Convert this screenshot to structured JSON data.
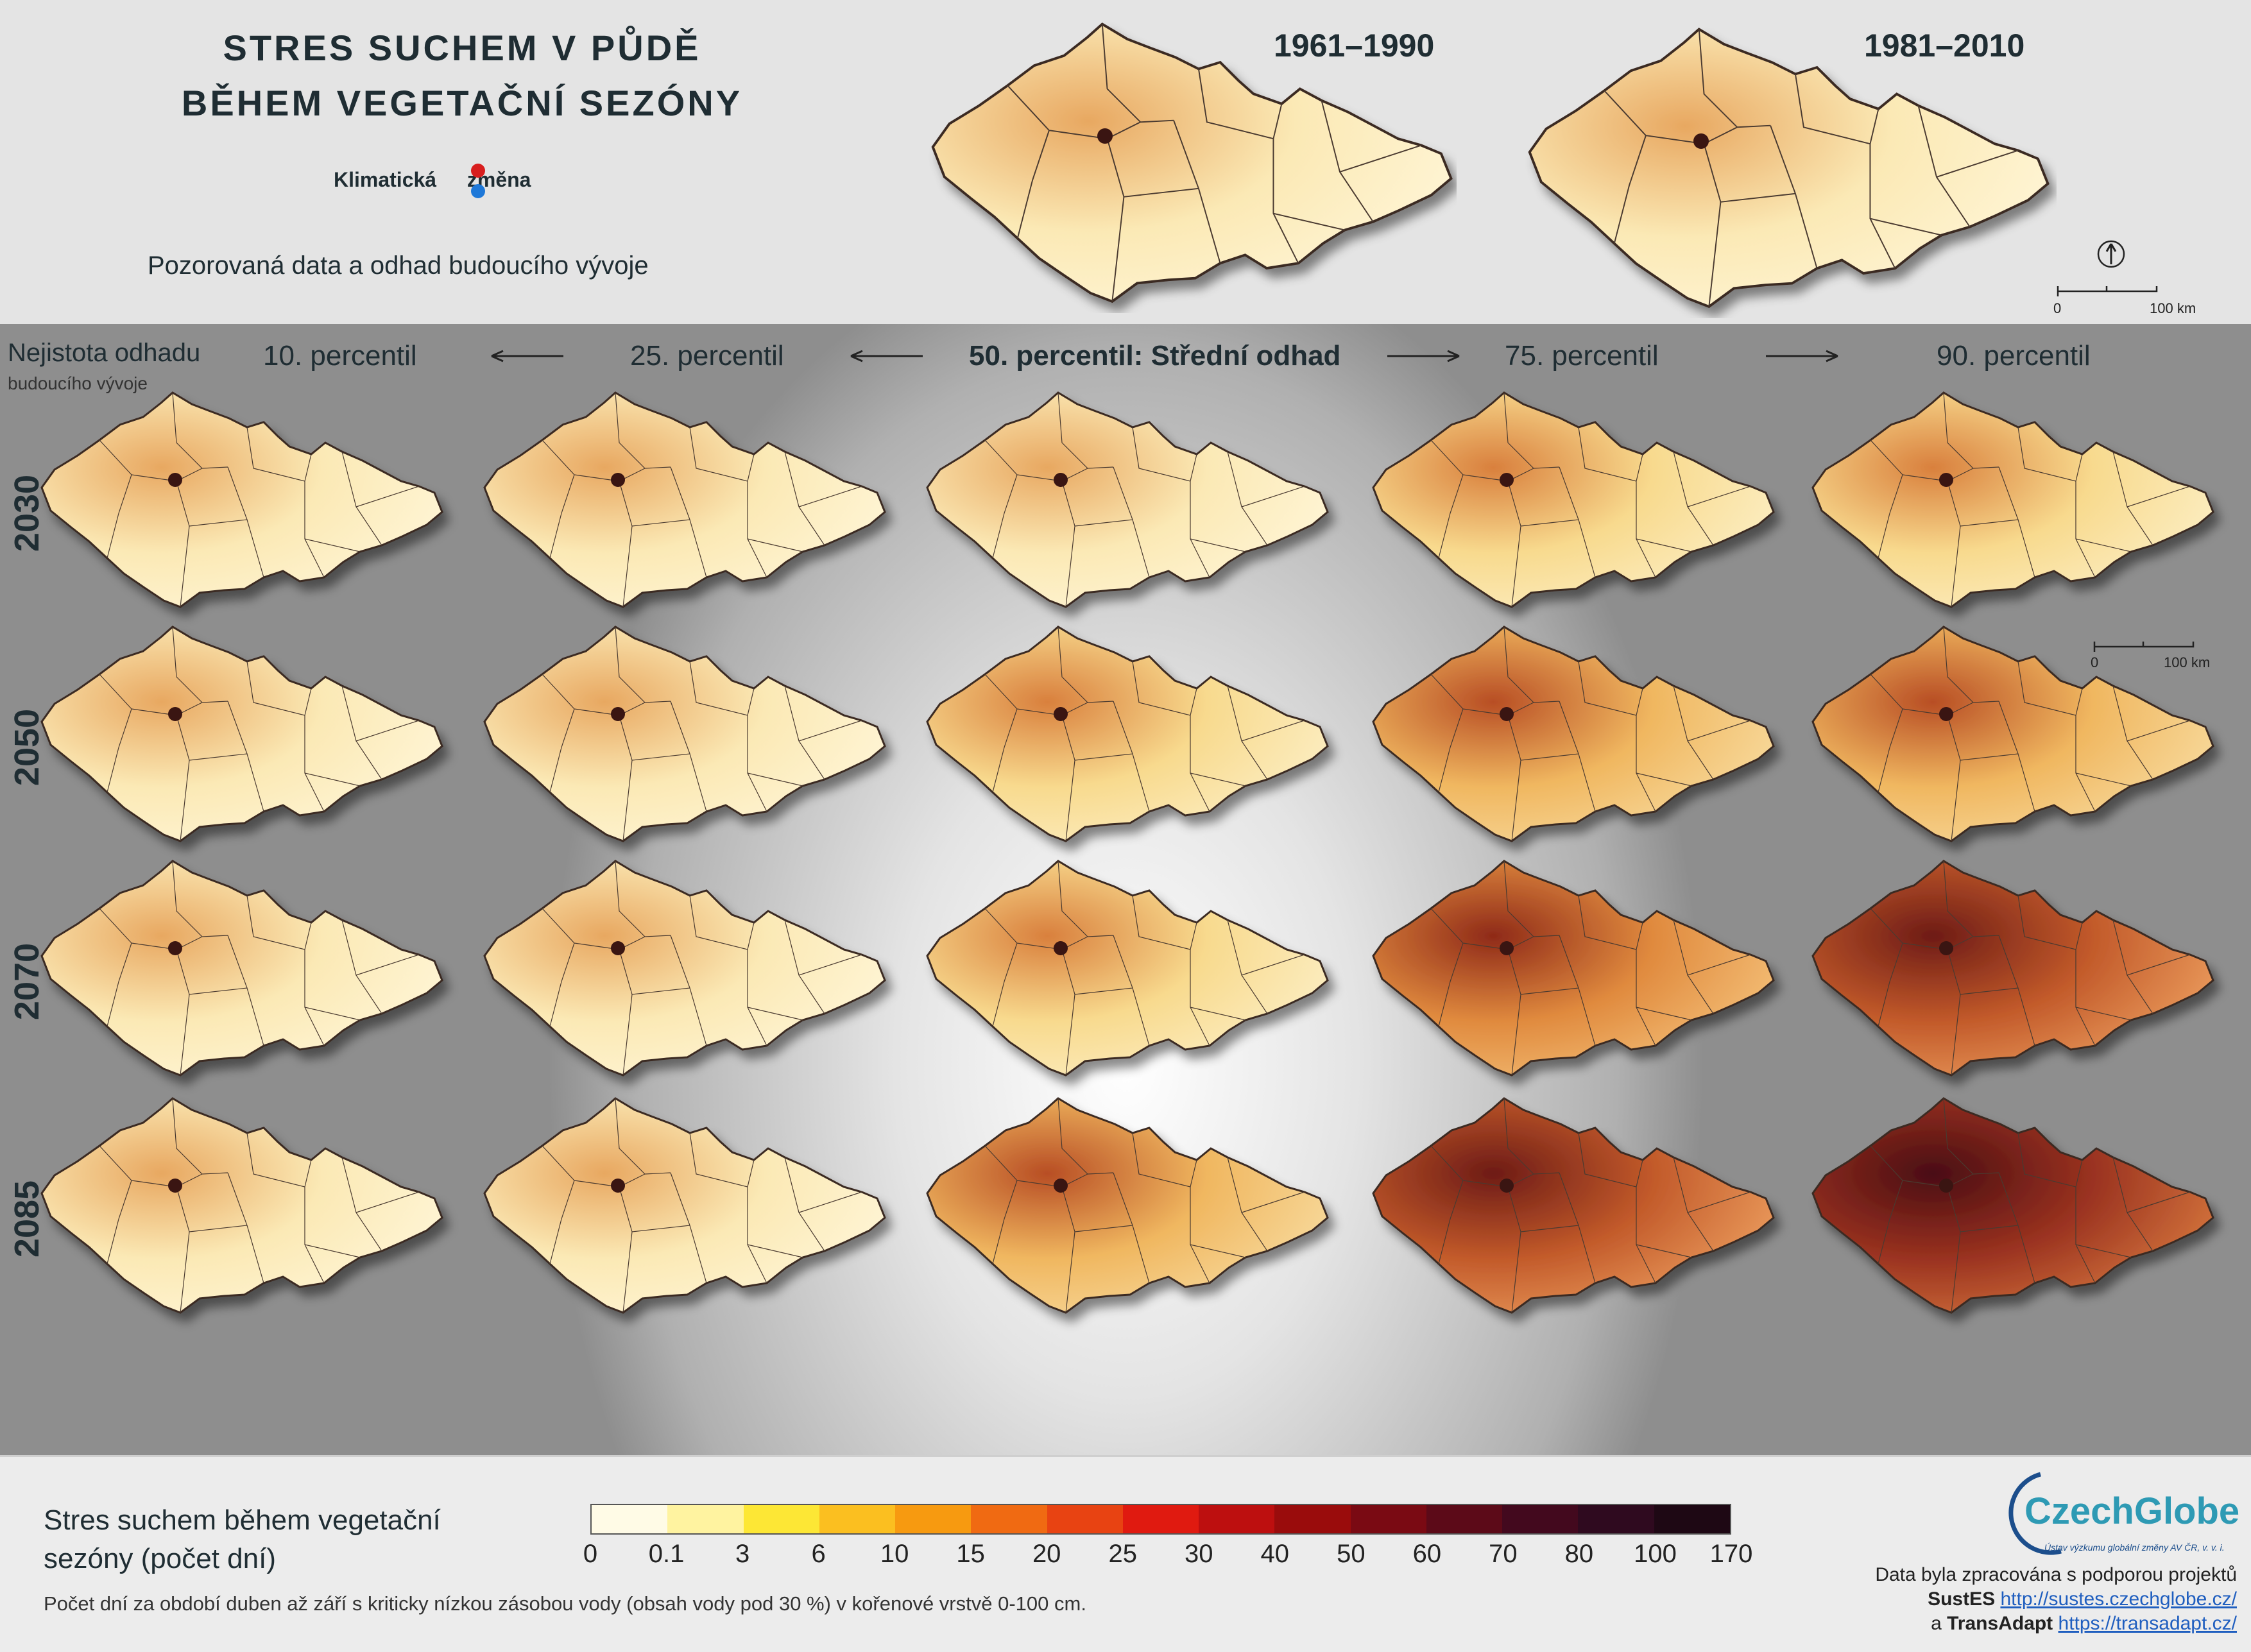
{
  "header": {
    "title_line1": "STRES SUCHEM V PŮDĚ",
    "title_line2": "BĚHEM VEGETAČNÍ SEZÓNY",
    "logo_word1": "Klimatická",
    "logo_word2": "změna",
    "subtitle": "Pozorovaná data a odhad budoucího vývoje"
  },
  "observed_periods": [
    {
      "label": "1961–1990",
      "intensity": 1
    },
    {
      "label": "1981–2010",
      "intensity": 1
    }
  ],
  "uncertainty": {
    "label": "Nejistota odhadu",
    "sublabel": "budoucího vývoje"
  },
  "percentiles": [
    {
      "label": "10. percentil",
      "bold": false
    },
    {
      "label": "25. percentil",
      "bold": false
    },
    {
      "label": "50. percentil: Střední odhad",
      "bold": true
    },
    {
      "label": "75. percentil",
      "bold": false
    },
    {
      "label": "90. percentil",
      "bold": false
    }
  ],
  "years": [
    {
      "label": "2030",
      "intensity": [
        1,
        1,
        1,
        2,
        2
      ]
    },
    {
      "label": "2050",
      "intensity": [
        1,
        1,
        2,
        3,
        3
      ]
    },
    {
      "label": "2070",
      "intensity": [
        1,
        1,
        2,
        4,
        5
      ]
    },
    {
      "label": "2085",
      "intensity": [
        1,
        1,
        3,
        5,
        6
      ]
    }
  ],
  "scale_bar": {
    "start": "0",
    "end": "100 km"
  },
  "legend": {
    "title_line1": "Stres suchem během vegetační",
    "title_line2": "sezóny (počet dní)",
    "note": "Počet dní za období duben až září s kriticky nízkou zásobou vody (obsah vody pod 30 %) v kořenové vrstvě 0-100 cm.",
    "colors": [
      "#fffbe6",
      "#fff3a0",
      "#fde735",
      "#fbbf20",
      "#f79a10",
      "#f06a12",
      "#e84312",
      "#e01a10",
      "#bd0f0f",
      "#9a0c0c",
      "#7a0a13",
      "#5c0a18",
      "#43091e",
      "#2f0a1f",
      "#1e0814"
    ],
    "ticks": [
      "0",
      "0.1",
      "3",
      "6",
      "10",
      "15",
      "20",
      "25",
      "30",
      "40",
      "50",
      "60",
      "70",
      "80",
      "100",
      "170"
    ]
  },
  "footer": {
    "org_name": "CzechGlobe",
    "org_sub": "Ústav výzkumu globální změny AV ČR, v. v. i.",
    "credit_line1": "Data byla zpracována s podporou projektů",
    "project1_name": "SustES",
    "project1_url": "http://sustes.czechglobe.cz/",
    "credit_and": "a",
    "project2_name": "TransAdapt",
    "project2_url": "https://transadapt.cz/"
  },
  "palette": {
    "intensity": [
      "#fbe9b5",
      "#f8da8e",
      "#f0b760",
      "#e08a3e",
      "#c25a2a",
      "#9a3220",
      "#6e1b16"
    ]
  }
}
